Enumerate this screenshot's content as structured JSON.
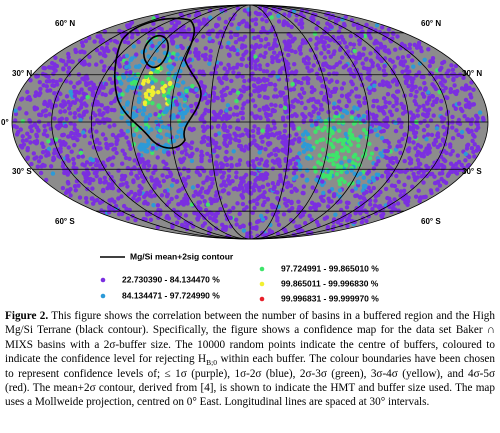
{
  "figure": {
    "map": {
      "latitude_labels": [
        "60° N",
        "30° N",
        "0°",
        "30° S",
        "60° S"
      ],
      "background_color": "#8c8c8c"
    },
    "legend": {
      "contour_label": "Mg/Si mean+2sig contour",
      "items": [
        {
          "label": "22.730390 - 84.134470 %",
          "color": "#7b2fe0"
        },
        {
          "label": "84.134471 - 97.724990 %",
          "color": "#2c9ad8"
        },
        {
          "label": "97.724991 - 99.865010 %",
          "color": "#3ee46a"
        },
        {
          "label": "99.865011 - 99.996830 %",
          "color": "#f2f030"
        },
        {
          "label": "99.996831 - 99.999970 %",
          "color": "#e8202a"
        }
      ]
    },
    "caption": {
      "label": "Figure 2.",
      "text_before": " This figure shows the correlation between the number of basins in a buffered region and the High Mg/Si Terrane (black contour). Specifically, the figure shows a confidence map for the data set Baker ∩ MIXS basins with a 2σ-buffer size. The 10000 random points indicate the centre of buffers, coloured to indicate the confidence level for rejecting H",
      "subscript": "B;0",
      "text_after": " within each buffer. The colour boundaries have been chosen to represent confidence levels of; ≤ 1σ (purple), 1σ-2σ (blue), 2σ-3σ (green), 3σ-4σ (yellow), and 4σ-5σ (red). The mean+2σ contour, derived from [4], is shown to indicate the HMT and buffer size used. The map uses a Mollweide projection, centred on 0° East. Longitudinal lines are spaced at 30° intervals."
    }
  }
}
